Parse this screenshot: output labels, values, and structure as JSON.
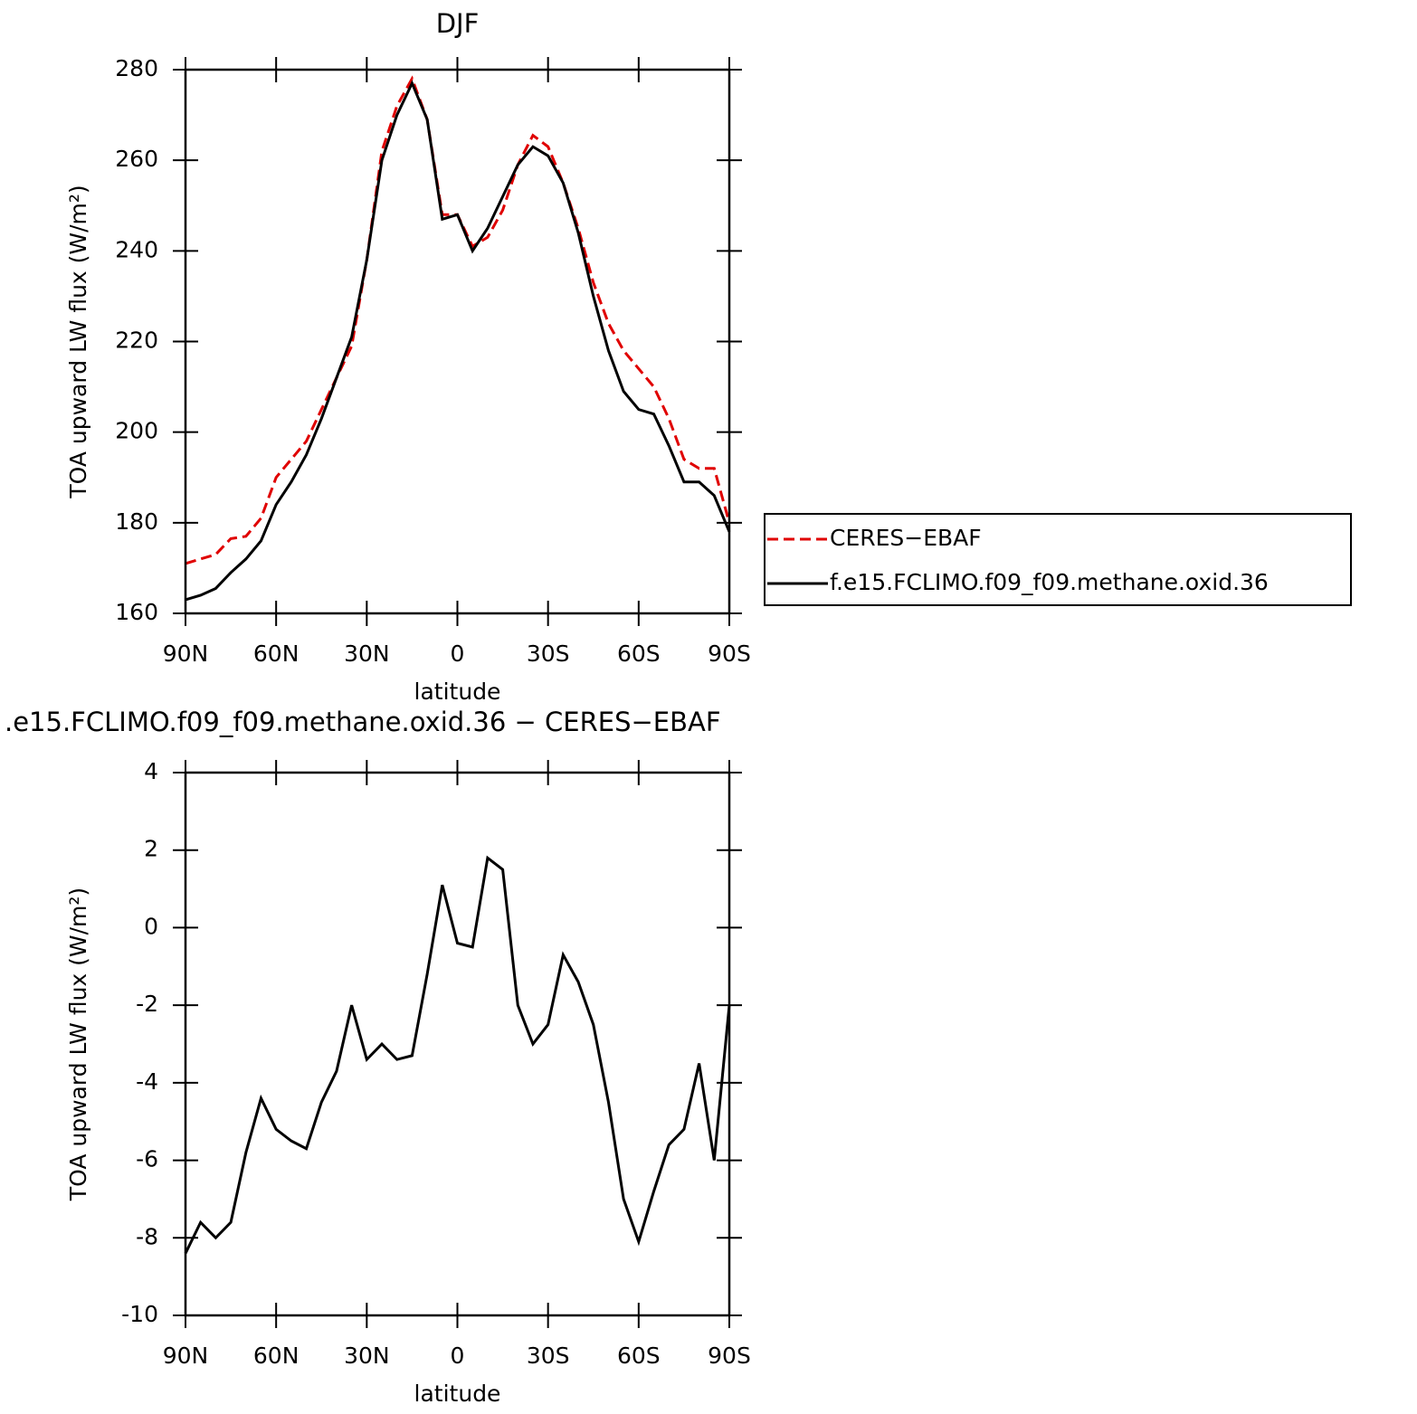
{
  "chart_data": [
    {
      "type": "line",
      "title": "DJF",
      "xlabel": "latitude",
      "ylabel": "TOA upward LW flux (W/m²)",
      "x": [
        90,
        85,
        80,
        75,
        70,
        65,
        60,
        55,
        50,
        45,
        40,
        35,
        30,
        25,
        20,
        15,
        10,
        5,
        0,
        -5,
        -10,
        -15,
        -20,
        -25,
        -30,
        -35,
        -40,
        -45,
        -50,
        -55,
        -60,
        -65,
        -70,
        -75,
        -80,
        -85,
        -90
      ],
      "series": [
        {
          "name": "CERES−EBAF",
          "color": "#e00000",
          "linestyle": "dashed",
          "values": [
            171,
            172,
            173,
            176.5,
            177,
            181,
            190,
            194,
            198,
            205,
            212,
            219,
            238,
            262,
            272,
            278,
            269,
            248,
            248,
            241,
            243,
            249,
            259,
            265.5,
            263,
            255,
            245,
            233,
            224,
            218,
            214,
            210,
            203,
            194,
            192,
            192,
            180
          ]
        },
        {
          "name": "f.e15.FCLIMO.f09_f09.methane.oxid.36",
          "color": "#000000",
          "linestyle": "solid",
          "values": [
            163,
            164,
            165.5,
            169,
            172,
            176,
            184,
            189,
            195,
            203,
            212,
            221,
            238,
            260,
            270,
            277,
            269,
            247,
            248,
            240,
            245,
            252,
            259,
            263,
            261,
            255,
            244,
            230,
            218,
            209,
            205,
            204,
            197,
            189,
            189,
            186,
            178
          ]
        }
      ],
      "xlim": [
        90,
        -90
      ],
      "xticks": [
        {
          "value": 90,
          "label": "90N"
        },
        {
          "value": 60,
          "label": "60N"
        },
        {
          "value": 30,
          "label": "30N"
        },
        0,
        {
          "value": -30,
          "label": "30S"
        },
        {
          "value": -60,
          "label": "60S"
        },
        {
          "value": -90,
          "label": "90S"
        }
      ],
      "ylim": [
        160,
        280
      ],
      "yticks": [
        160,
        180,
        200,
        220,
        240,
        260,
        280
      ],
      "legend": "right"
    },
    {
      "type": "line",
      "title": ".e15.FCLIMO.f09_f09.methane.oxid.36 − CERES−EBAF",
      "xlabel": "latitude",
      "ylabel": "TOA upward LW flux (W/m²)",
      "x": [
        90,
        85,
        80,
        75,
        70,
        65,
        60,
        55,
        50,
        45,
        40,
        35,
        30,
        25,
        20,
        15,
        10,
        5,
        0,
        -5,
        -10,
        -15,
        -20,
        -25,
        -30,
        -35,
        -40,
        -45,
        -50,
        -55,
        -60,
        -65,
        -70,
        -75,
        -80,
        -85,
        -90
      ],
      "series": [
        {
          "color": "#000000",
          "linestyle": "solid",
          "values": [
            -8.4,
            -7.6,
            -8.0,
            -7.6,
            -5.8,
            -4.4,
            -5.2,
            -5.5,
            -5.7,
            -4.5,
            -3.7,
            -2.0,
            -3.4,
            -3.0,
            -3.4,
            -3.3,
            -1.2,
            1.1,
            -0.4,
            -0.5,
            1.8,
            1.5,
            -2.0,
            -3.0,
            -2.5,
            -0.7,
            -1.4,
            -2.5,
            -4.5,
            -7.0,
            -8.1,
            -6.8,
            -5.6,
            -5.2,
            -3.5,
            -6.0,
            -2.0
          ]
        }
      ],
      "xlim": [
        90,
        -90
      ],
      "xticks": [
        {
          "value": 90,
          "label": "90N"
        },
        {
          "value": 60,
          "label": "60N"
        },
        {
          "value": 30,
          "label": "30N"
        },
        0,
        {
          "value": -30,
          "label": "30S"
        },
        {
          "value": -60,
          "label": "60S"
        },
        {
          "value": -90,
          "label": "90S"
        }
      ],
      "ylim": [
        -10,
        4
      ],
      "yticks": [
        -10,
        -8,
        -6,
        -4,
        -2,
        0,
        2,
        4
      ]
    }
  ]
}
